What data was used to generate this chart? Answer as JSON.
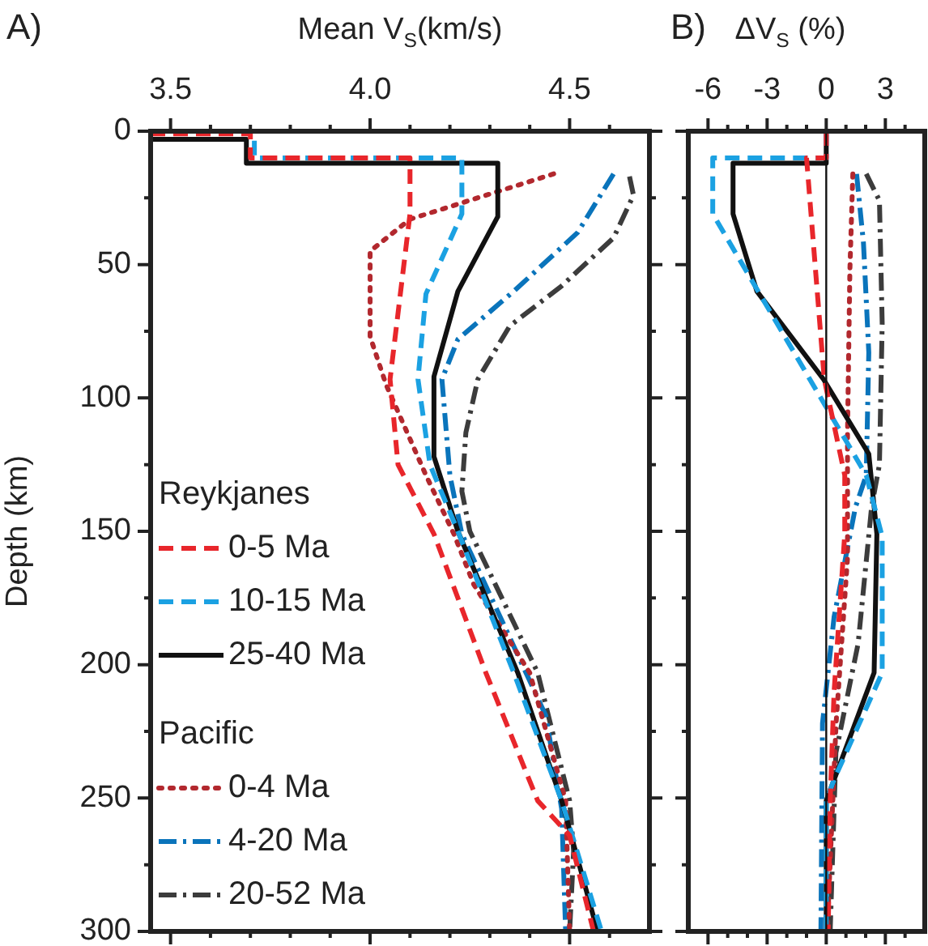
{
  "chart_data": [
    {
      "type": "line",
      "title": "A)",
      "xlabel": "Mean V$_{S}$(km/s)",
      "ylabel": "Depth (km)",
      "annotations": [
        "Reykjanes",
        "Pacific"
      ],
      "legend": "bottom left",
      "xlim": [
        3.45,
        4.7
      ],
      "xticks": [
        3.5,
        {
          "value": 3.6,
          "label": null
        },
        {
          "value": 3.7,
          "label": null
        },
        {
          "value": 3.8,
          "label": null
        },
        {
          "value": 3.9,
          "label": null
        },
        {
          "value": 4,
          "label": "4.0"
        },
        {
          "value": 4.1,
          "label": null
        },
        {
          "value": 4.2,
          "label": null
        },
        {
          "value": 4.3,
          "label": null
        },
        {
          "value": 4.4,
          "label": null
        },
        4.5,
        {
          "value": 4.6,
          "label": null
        }
      ],
      "ylim": [
        300,
        0
      ],
      "yticks": [
        0,
        {
          "value": 25,
          "label": null
        },
        50,
        {
          "value": 75,
          "label": null
        },
        100,
        {
          "value": 125,
          "label": null
        },
        150,
        {
          "value": 175,
          "label": null
        },
        200,
        {
          "value": 225,
          "label": null
        },
        250,
        {
          "value": 275,
          "label": null
        },
        300
      ],
      "series": [
        {
          "name": "0-5 Ma",
          "color": "#e8262b",
          "line_style": "dashed",
          "x": [
            3.45,
            3.7,
            3.7,
            4.1,
            4.1,
            4.05,
            4.07,
            4.16,
            4.29,
            4.42,
            4.5,
            4.56
          ],
          "values": [
            1,
            1,
            10,
            10,
            31,
            93,
            125,
            151,
            203,
            251,
            264,
            300
          ]
        },
        {
          "name": "10-15 Ma",
          "color": "#1ba1e2",
          "line_style": "dashed",
          "x": [
            3.45,
            3.71,
            3.71,
            4.23,
            4.23,
            4.14,
            4.12,
            4.15,
            4.22,
            4.36,
            4.48,
            4.58
          ],
          "values": [
            0,
            0,
            10,
            10,
            31,
            61,
            93,
            125,
            150,
            203,
            251,
            300
          ]
        },
        {
          "name": "25-40 Ma",
          "color": "#111111",
          "line_style": "solid",
          "x": [
            3.45,
            3.69,
            3.69,
            4.32,
            4.32,
            4.22,
            4.16,
            4.16,
            4.22,
            4.37,
            4.48,
            4.57
          ],
          "values": [
            3,
            3,
            12,
            12,
            32,
            60,
            92,
            122,
            150,
            203,
            251,
            300
          ]
        },
        {
          "name": "0-4 Ma",
          "color": "#b2282e",
          "line_style": "dotted",
          "x": [
            4.46,
            4.1,
            4.0,
            4.0,
            4.04,
            4.14,
            4.21,
            4.26,
            4.4,
            4.49,
            4.5
          ],
          "values": [
            16,
            33,
            45,
            77,
            95,
            129,
            151,
            170,
            203,
            251,
            300
          ]
        },
        {
          "name": "4-20 Ma",
          "color": "#0a74bb",
          "line_style": "dashdot",
          "x": [
            4.61,
            4.52,
            4.36,
            4.22,
            4.18,
            4.2,
            4.23,
            4.44,
            4.48,
            4.49
          ],
          "values": [
            16,
            38,
            60,
            78,
            93,
            129,
            151,
            219,
            254,
            300
          ]
        },
        {
          "name": "20-52 Ma",
          "color": "#3c3c3c",
          "line_style": "dashdot",
          "x": [
            4.65,
            4.66,
            4.61,
            4.48,
            4.35,
            4.27,
            4.24,
            4.23,
            4.25,
            4.42,
            4.5,
            4.51,
            4.5
          ],
          "values": [
            17,
            24,
            40,
            58,
            73,
            93,
            113,
            135,
            150,
            203,
            251,
            270,
            300
          ]
        }
      ]
    },
    {
      "type": "line",
      "title": "B)",
      "xlabel": "ΔV$_{S}$ (%)",
      "tick_labels": "x",
      "xlim": [
        -7,
        5
      ],
      "xticks": [
        -6,
        {
          "value": -5,
          "label": null
        },
        {
          "value": -4,
          "label": null
        },
        -3,
        {
          "value": -2,
          "label": null
        },
        {
          "value": -1,
          "label": null
        },
        0,
        {
          "value": 1,
          "label": null
        },
        {
          "value": 2,
          "label": null
        },
        3,
        {
          "value": 4,
          "label": null
        }
      ],
      "ylim": [
        300,
        0
      ],
      "yticks": [
        0,
        {
          "value": 25,
          "label": null
        },
        50,
        {
          "value": 75,
          "label": null
        },
        100,
        {
          "value": 125,
          "label": null
        },
        150,
        {
          "value": 175,
          "label": null
        },
        200,
        {
          "value": 225,
          "label": null
        },
        250,
        {
          "value": 275,
          "label": null
        },
        300
      ],
      "ref_lines": [
        {
          "axis": "x",
          "value": 0,
          "color": "#111111"
        }
      ],
      "series": [
        {
          "color": "#e8262b",
          "line_style": "dashed",
          "x": [
            0,
            0,
            -1.0,
            -0.1,
            0.94,
            0.94,
            0.4,
            0.2,
            0.1
          ],
          "values": [
            0,
            10,
            10,
            93,
            129,
            151,
            210,
            251,
            300
          ]
        },
        {
          "color": "#1ba1e2",
          "line_style": "dashed",
          "x": [
            0,
            0,
            -5.76,
            -5.76,
            2.03,
            2.84,
            2.84,
            0.4,
            0,
            0
          ],
          "values": [
            0,
            10,
            10,
            31,
            129,
            152,
            203,
            243,
            251,
            300
          ]
        },
        {
          "color": "#111111",
          "line_style": "solid",
          "x": [
            0,
            0,
            -4.73,
            -4.73,
            -3.52,
            -0.14,
            2.16,
            2.57,
            2.43,
            0,
            0
          ],
          "values": [
            0,
            12,
            12,
            31,
            60,
            93,
            121,
            151,
            203,
            251,
            300
          ]
        },
        {
          "color": "#b2282e",
          "line_style": "dotted",
          "x": [
            1.35,
            1.2,
            1.08,
            1.08,
            0.5,
            0.05
          ],
          "values": [
            16,
            52,
            113,
            160,
            222,
            300
          ]
        },
        {
          "color": "#0a74bb",
          "line_style": "dashdot",
          "x": [
            1.54,
            1.89,
            2.16,
            2.03,
            1.48,
            0.4,
            -0.19,
            -0.27
          ],
          "values": [
            16,
            42,
            83,
            129,
            141,
            182,
            222,
            300
          ]
        },
        {
          "color": "#3c3c3c",
          "line_style": "dashdot",
          "x": [
            2.03,
            2.7,
            2.84,
            2.7,
            2.3,
            1.62,
            0.49,
            0.2
          ],
          "values": [
            16,
            26,
            72,
            125,
            141,
            192,
            233,
            300
          ]
        }
      ]
    }
  ]
}
